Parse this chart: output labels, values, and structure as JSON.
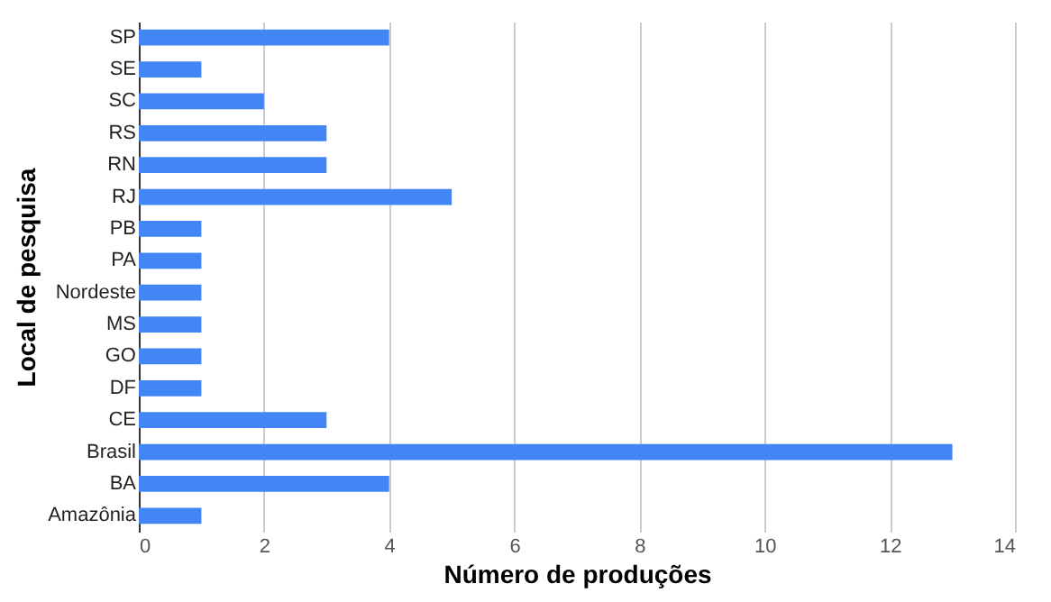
{
  "chart_data": {
    "type": "bar",
    "orientation": "horizontal",
    "xlabel": "Número de produções",
    "ylabel": "Local de pesquisa",
    "categories": [
      "SP",
      "SE",
      "SC",
      "RS",
      "RN",
      "RJ",
      "PB",
      "PA",
      "Nordeste",
      "MS",
      "GO",
      "DF",
      "CE",
      "Brasil",
      "BA",
      "Amazônia"
    ],
    "values": [
      4,
      1,
      2,
      3,
      3,
      5,
      1,
      1,
      1,
      1,
      1,
      1,
      3,
      13,
      4,
      1
    ],
    "color": "#4285f4",
    "xlim": [
      0,
      14
    ],
    "xticks": [
      0,
      2,
      4,
      6,
      8,
      10,
      12,
      14
    ],
    "grid": "x"
  }
}
